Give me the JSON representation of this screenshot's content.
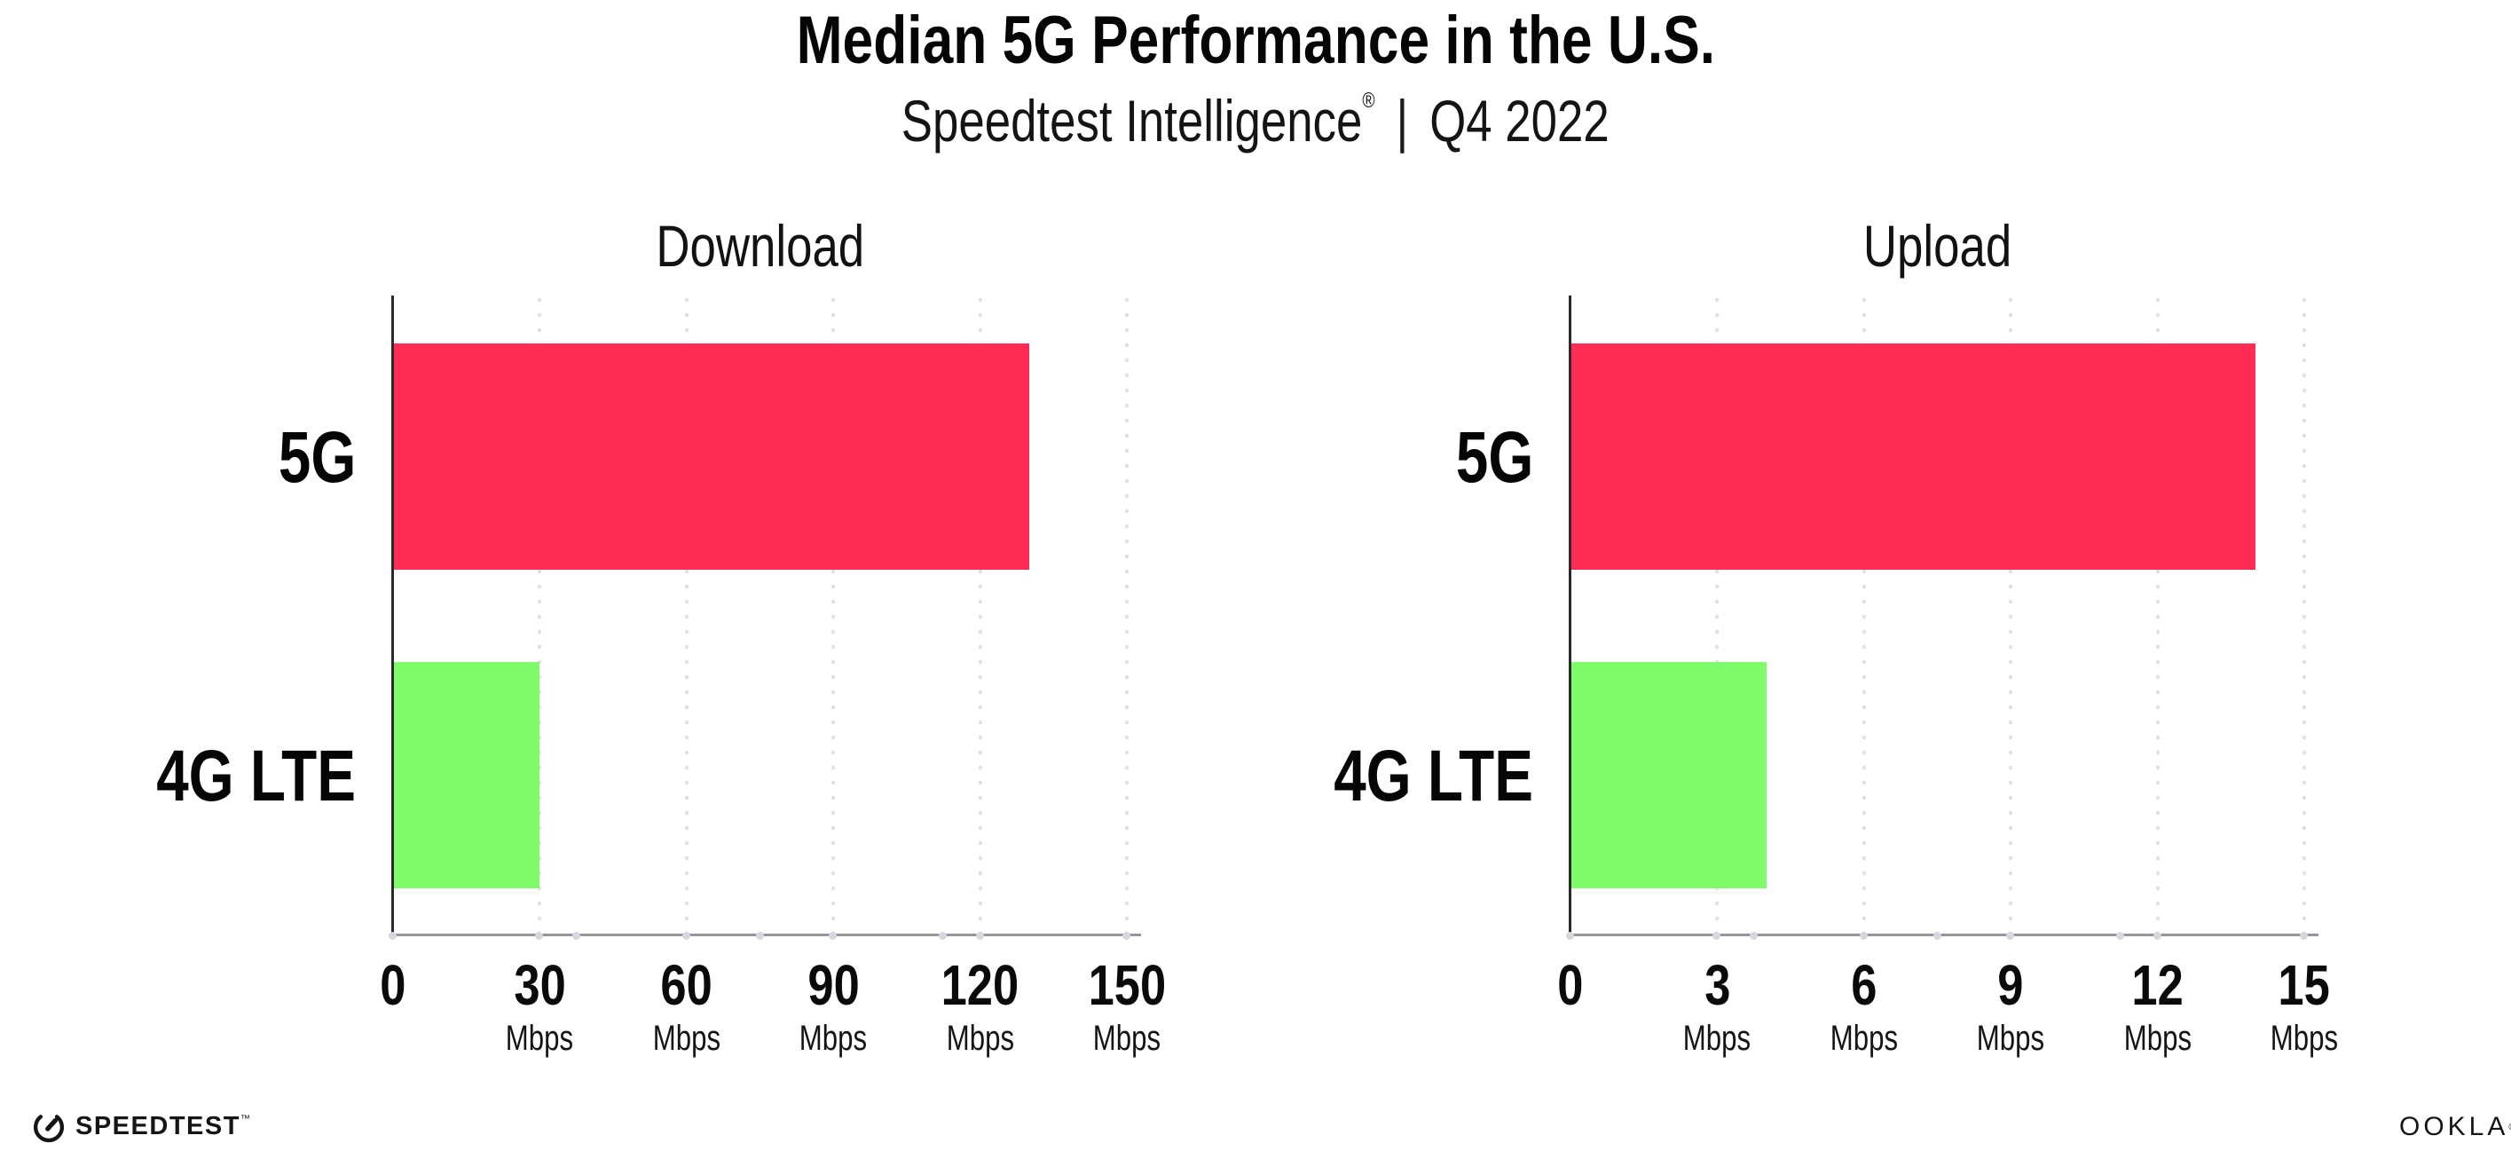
{
  "header": {
    "title": "Median 5G Performance in the U.S.",
    "subtitle_brand": "Speedtest Intelligence",
    "subtitle_reg": "®",
    "subtitle_divider": "|",
    "subtitle_period": "Q4 2022"
  },
  "chart_data": [
    {
      "type": "bar",
      "orientation": "horizontal",
      "title": "Download",
      "categories": [
        "5G",
        "4G LTE"
      ],
      "values": [
        130,
        30
      ],
      "unit": "Mbps",
      "xlabel": "",
      "ylabel": "",
      "xlim": [
        0,
        150
      ],
      "xticks": [
        0,
        30,
        60,
        90,
        120,
        150
      ],
      "bar_colors": [
        "#FF2D55",
        "#80FB69"
      ],
      "grid": "vertical dotted",
      "legend": "none",
      "data_labels": "none"
    },
    {
      "type": "bar",
      "orientation": "horizontal",
      "title": "Upload",
      "categories": [
        "5G",
        "4G LTE"
      ],
      "values": [
        14,
        4
      ],
      "unit": "Mbps",
      "xlabel": "",
      "ylabel": "",
      "xlim": [
        0,
        15
      ],
      "xticks": [
        0,
        3,
        6,
        9,
        12,
        15
      ],
      "bar_colors": [
        "#FF2D55",
        "#80FB69"
      ],
      "grid": "vertical dotted",
      "legend": "none",
      "data_labels": "none"
    }
  ],
  "footer": {
    "speedtest_wordmark": "SPEEDTEST",
    "speedtest_tm": "™",
    "ookla_wordmark": "OOKLA",
    "ookla_reg": "®"
  },
  "colors": {
    "bar_5g": "#FF2D55",
    "bar_4g_lte": "#80FB69",
    "grid_dot": "#DFE0EA",
    "x_axis": "#96969B",
    "y_axis": "#2B2B2F",
    "text": "#0A0A0A",
    "background": "#FFFFFF"
  }
}
